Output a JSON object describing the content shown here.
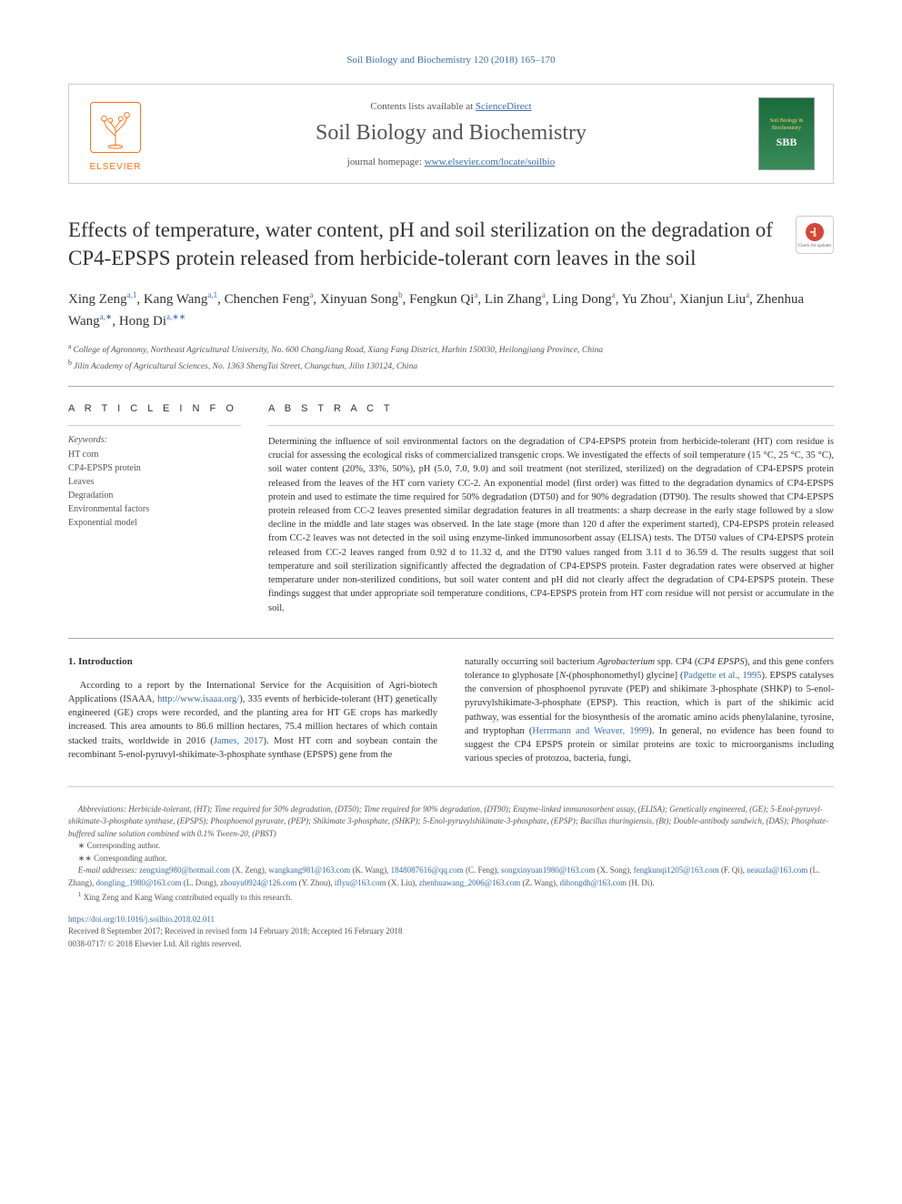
{
  "top_reference": "Soil Biology and Biochemistry 120 (2018) 165–170",
  "header": {
    "contents_prefix": "Contents lists available at ",
    "contents_link": "ScienceDirect",
    "journal_name": "Soil Biology and Biochemistry",
    "homepage_prefix": "journal homepage: ",
    "homepage_link": "www.elsevier.com/locate/soilbio",
    "elsevier": "ELSEVIER",
    "cover_line1": "Soil Biology &",
    "cover_line2": "Biochemistry",
    "cover_sbb": "SBB"
  },
  "check_badge": "Check for updates",
  "title": "Effects of temperature, water content, pH and soil sterilization on the degradation of CP4-EPSPS protein released from herbicide-tolerant corn leaves in the soil",
  "authors_html": "Xing Zeng<sup>a,1</sup>, Kang Wang<sup>a,1</sup>, Chenchen Feng<sup>a</sup>, Xinyuan Song<sup>b</sup>, Fengkun Qi<sup>a</sup>, Lin Zhang<sup>a</sup>, Ling Dong<sup>a</sup>, Yu Zhou<sup>a</sup>, Xianjun Liu<sup>a</sup>, Zhenhua Wang<sup>a,∗</sup>, Hong Di<sup>a,∗∗</sup>",
  "affiliations": {
    "a": "College of Agronomy, Northeast Agricultural University, No. 600 ChangJiang Road, Xiang Fang District, Harbin 150030, Heilongjiang Province, China",
    "b": "Jilin Academy of Agricultural Sciences, No. 1363 ShengTai Street, Changchun, Jilin 130124, China"
  },
  "article_info": {
    "label": "A R T I C L E  I N F O",
    "keywords_label": "Keywords:",
    "keywords": [
      "HT corn",
      "CP4-EPSPS protein",
      "Leaves",
      "Degradation",
      "Environmental factors",
      "Exponential model"
    ]
  },
  "abstract": {
    "label": "A B S T R A C T",
    "text": "Determining the influence of soil environmental factors on the degradation of CP4-EPSPS protein from herbicide-tolerant (HT) corn residue is crucial for assessing the ecological risks of commercialized transgenic crops. We investigated the effects of soil temperature (15 °C, 25 °C, 35 °C), soil water content (20%, 33%, 50%), pH (5.0, 7.0, 9.0) and soil treatment (not sterilized, sterilized) on the degradation of CP4-EPSPS protein released from the leaves of the HT corn variety CC-2. An exponential model (first order) was fitted to the degradation dynamics of CP4-EPSPS protein and used to estimate the time required for 50% degradation (DT50) and for 90% degradation (DT90). The results showed that CP4-EPSPS protein released from CC-2 leaves presented similar degradation features in all treatments: a sharp decrease in the early stage followed by a slow decline in the middle and late stages was observed. In the late stage (more than 120 d after the experiment started), CP4-EPSPS protein released from CC-2 leaves was not detected in the soil using enzyme-linked immunosorbent assay (ELISA) tests. The DT50 values of CP4-EPSPS protein released from CC-2 leaves ranged from 0.92 d to 11.32 d, and the DT90 values ranged from 3.11 d to 36.59 d. The results suggest that soil temperature and soil sterilization significantly affected the degradation of CP4-EPSPS protein. Faster degradation rates were observed at higher temperature under non-sterilized conditions, but soil water content and pH did not clearly affect the degradation of CP4-EPSPS protein. These findings suggest that under appropriate soil temperature conditions, CP4-EPSPS protein from HT corn residue will not persist or accumulate in the soil."
  },
  "intro": {
    "heading": "1. Introduction",
    "col1_html": "According to a report by the International Service for the Acquisition of Agri-biotech Applications (ISAAA, <a href='#'>http://www.isaaa.org/</a>), 335 events of herbicide-tolerant (HT) genetically engineered (GE) crops were recorded, and the planting area for HT GE crops has markedly increased. This area amounts to 86.6 million hectares, 75.4 million hectares of which contain stacked traits, worldwide in 2016 (<a href='#'>James, 2017</a>). Most HT corn and soybean contain the recombinant 5-enol-pyruvyl-shikimate-3-phosphate synthase (EPSPS) gene from the",
    "col2_html": "naturally occurring soil bacterium <em>Agrobacterium</em> spp. CP4 (<em>CP4 EPSPS</em>), and this gene confers tolerance to glyphosate [<em>N</em>-(phosphonomethyl) glycine] (<a href='#'>Padgette et al., 1995</a>). EPSPS catalyses the conversion of phosphoenol pyruvate (PEP) and shikimate 3-phosphate (SHKP) to 5-enol-pyruvylshikimate-3-phosphate (EPSP). This reaction, which is part of the shikimic acid pathway, was essential for the biosynthesis of the aromatic amino acids phenylalanine, tyrosine, and tryptophan (<a href='#'>Herrmann and Weaver, 1999</a>). In general, no evidence has been found to suggest the CP4 EPSPS protein or similar proteins are toxic to microorganisms including various species of protozoa, bacteria, fungi,"
  },
  "footnotes": {
    "abbrev_label": "Abbreviations:",
    "abbrev_text": " Herbicide-tolerant, (HT); Time required for 50% degradation, (DT50); Time required for 90% degradation, (DT90); Enzyme-linked immunosorbent assay, (ELISA); Genetically engineered, (GE); 5-Enol-pyruvyl-shikimate-3-phosphate synthase, (EPSPS); Phosphoenol pyruvate, (PEP); Shikimate 3-phosphate, (SHKP); 5-Enol-pyruvylshikimate-3-phosphate, (EPSP); Bacillus thuringiensis, (Bt); Double-antibody sandwich, (DAS); Phosphate-buffered saline solution combined with 0.1% Tween-20, (PBST)",
    "corr1": "∗ Corresponding author.",
    "corr2": "∗∗ Corresponding author.",
    "email_label": "E-mail addresses:",
    "emails_html": " <a href='#'>zengxing980@hotmail.com</a> (X. Zeng), <a href='#'>wangkang981@163.com</a> (K. Wang), <a href='#'>1848087616@qq.com</a> (C. Feng), <a href='#'>songxinyuan1980@163.com</a> (X. Song), <a href='#'>fengkunqi1205@163.com</a> (F. Qi), <a href='#'>neauzla@163.com</a> (L. Zhang), <a href='#'>dongling_1980@163.com</a> (L. Dong), <a href='#'>zhouyu0924@126.com</a> (Y. Zhou), <a href='#'>iflyu@163.com</a> (X. Liu), <a href='#'>zhenhuawang_2006@163.com</a> (Z. Wang), <a href='#'>dihongdh@163.com</a> (H. Di).",
    "contrib": "Xing Zeng and Kang Wang contributed equally to this research.",
    "contrib_sup": "1"
  },
  "doi": {
    "link": "https://doi.org/10.1016/j.soilbio.2018.02.011",
    "received": "Received 8 September 2017; Received in revised form 14 February 2018; Accepted 16 February 2018",
    "copyright": "0038-0717/ © 2018 Elsevier Ltd. All rights reserved."
  }
}
